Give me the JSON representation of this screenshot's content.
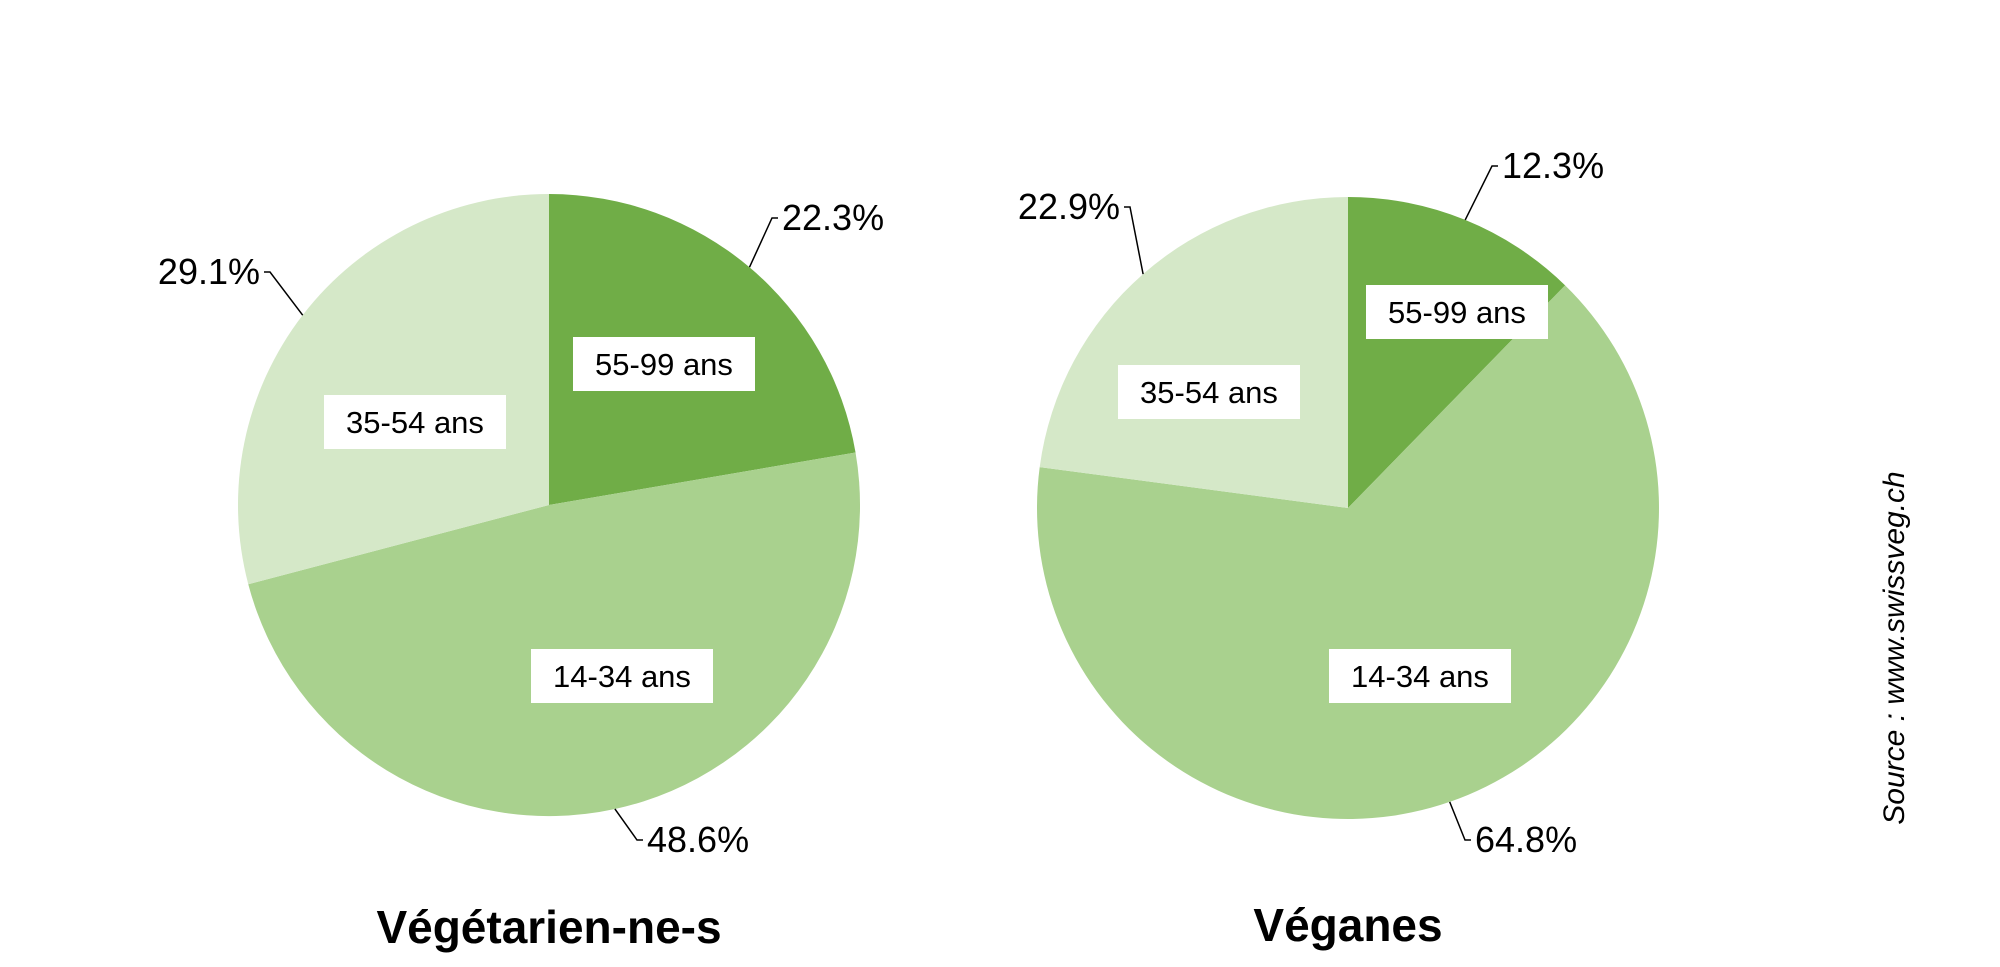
{
  "chart_data": [
    {
      "type": "pie",
      "title": "Végétarien-ne-s",
      "slices": [
        {
          "category": "55-99 ans",
          "value": 22.3,
          "label": "22.3%",
          "color": "#70ad47"
        },
        {
          "category": "14-34 ans",
          "value": 48.6,
          "label": "48.6%",
          "color": "#a9d18e"
        },
        {
          "category": "35-54 ans",
          "value": 29.1,
          "label": "29.1%",
          "color": "#d5e8c8"
        }
      ],
      "start": "12 o'clock",
      "direction": "clockwise"
    },
    {
      "type": "pie",
      "title": "Véganes",
      "slices": [
        {
          "category": "55-99 ans",
          "value": 12.3,
          "label": "12.3%",
          "color": "#70ad47"
        },
        {
          "category": "14-34 ans",
          "value": 64.8,
          "label": "64.8%",
          "color": "#a9d18e"
        },
        {
          "category": "35-54 ans",
          "value": 22.9,
          "label": "22.9%",
          "color": "#d5e8c8"
        }
      ],
      "start": "12 o'clock",
      "direction": "clockwise"
    }
  ],
  "source": "Source : www.swissveg.ch"
}
